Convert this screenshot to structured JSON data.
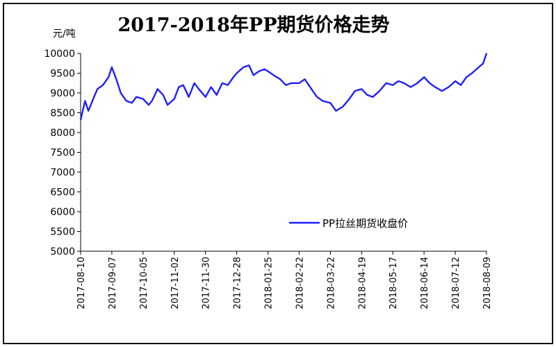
{
  "chart_data": {
    "type": "line",
    "title": "2017-2018年PP期货价格走势",
    "ylabel": "元/吨",
    "xlabel": "",
    "ylim": [
      5000,
      10000
    ],
    "yticks": [
      5000,
      5500,
      6000,
      6500,
      7000,
      7500,
      8000,
      8500,
      9000,
      9500,
      10000
    ],
    "xticks": [
      "2017-08-10",
      "2017-09-07",
      "2017-10-05",
      "2017-11-02",
      "2017-11-30",
      "2017-12-28",
      "2018-01-25",
      "2018-02-22",
      "2018-03-22",
      "2018-04-19",
      "2018-05-17",
      "2018-06-14",
      "2018-07-12",
      "2018-08-09"
    ],
    "grid": false,
    "legend_position": "bottom-right",
    "series": [
      {
        "name": "PP拉丝期货收盘价",
        "color": "#1f1fff",
        "x": [
          "2017-08-10",
          "2017-08-14",
          "2017-08-17",
          "2017-08-22",
          "2017-08-25",
          "2017-08-30",
          "2017-09-04",
          "2017-09-07",
          "2017-09-11",
          "2017-09-15",
          "2017-09-20",
          "2017-09-25",
          "2017-09-29",
          "2017-10-05",
          "2017-10-10",
          "2017-10-13",
          "2017-10-18",
          "2017-10-23",
          "2017-10-27",
          "2017-11-02",
          "2017-11-06",
          "2017-11-10",
          "2017-11-15",
          "2017-11-20",
          "2017-11-24",
          "2017-11-30",
          "2017-12-05",
          "2017-12-10",
          "2017-12-15",
          "2017-12-20",
          "2017-12-25",
          "2017-12-28",
          "2018-01-03",
          "2018-01-08",
          "2018-01-12",
          "2018-01-17",
          "2018-01-22",
          "2018-01-25",
          "2018-01-30",
          "2018-02-05",
          "2018-02-10",
          "2018-02-15",
          "2018-02-22",
          "2018-02-27",
          "2018-03-05",
          "2018-03-10",
          "2018-03-15",
          "2018-03-22",
          "2018-03-27",
          "2018-04-02",
          "2018-04-08",
          "2018-04-13",
          "2018-04-19",
          "2018-04-24",
          "2018-04-29",
          "2018-05-05",
          "2018-05-11",
          "2018-05-17",
          "2018-05-22",
          "2018-05-27",
          "2018-06-02",
          "2018-06-08",
          "2018-06-14",
          "2018-06-19",
          "2018-06-24",
          "2018-06-30",
          "2018-07-06",
          "2018-07-12",
          "2018-07-17",
          "2018-07-22",
          "2018-07-27",
          "2018-08-02",
          "2018-08-06",
          "2018-08-09"
        ],
        "values": [
          8320,
          8800,
          8550,
          8900,
          9100,
          9200,
          9400,
          9650,
          9350,
          9000,
          8800,
          8750,
          8900,
          8850,
          8700,
          8800,
          9100,
          8950,
          8700,
          8850,
          9150,
          9200,
          8900,
          9250,
          9100,
          8900,
          9150,
          8950,
          9250,
          9200,
          9400,
          9500,
          9650,
          9700,
          9450,
          9550,
          9600,
          9550,
          9450,
          9350,
          9200,
          9250,
          9250,
          9350,
          9100,
          8900,
          8800,
          8750,
          8550,
          8650,
          8850,
          9050,
          9100,
          8950,
          8900,
          9050,
          9250,
          9200,
          9300,
          9250,
          9150,
          9250,
          9400,
          9250,
          9150,
          9050,
          9150,
          9300,
          9200,
          9400,
          9500,
          9650,
          9750,
          10000
        ]
      }
    ]
  }
}
